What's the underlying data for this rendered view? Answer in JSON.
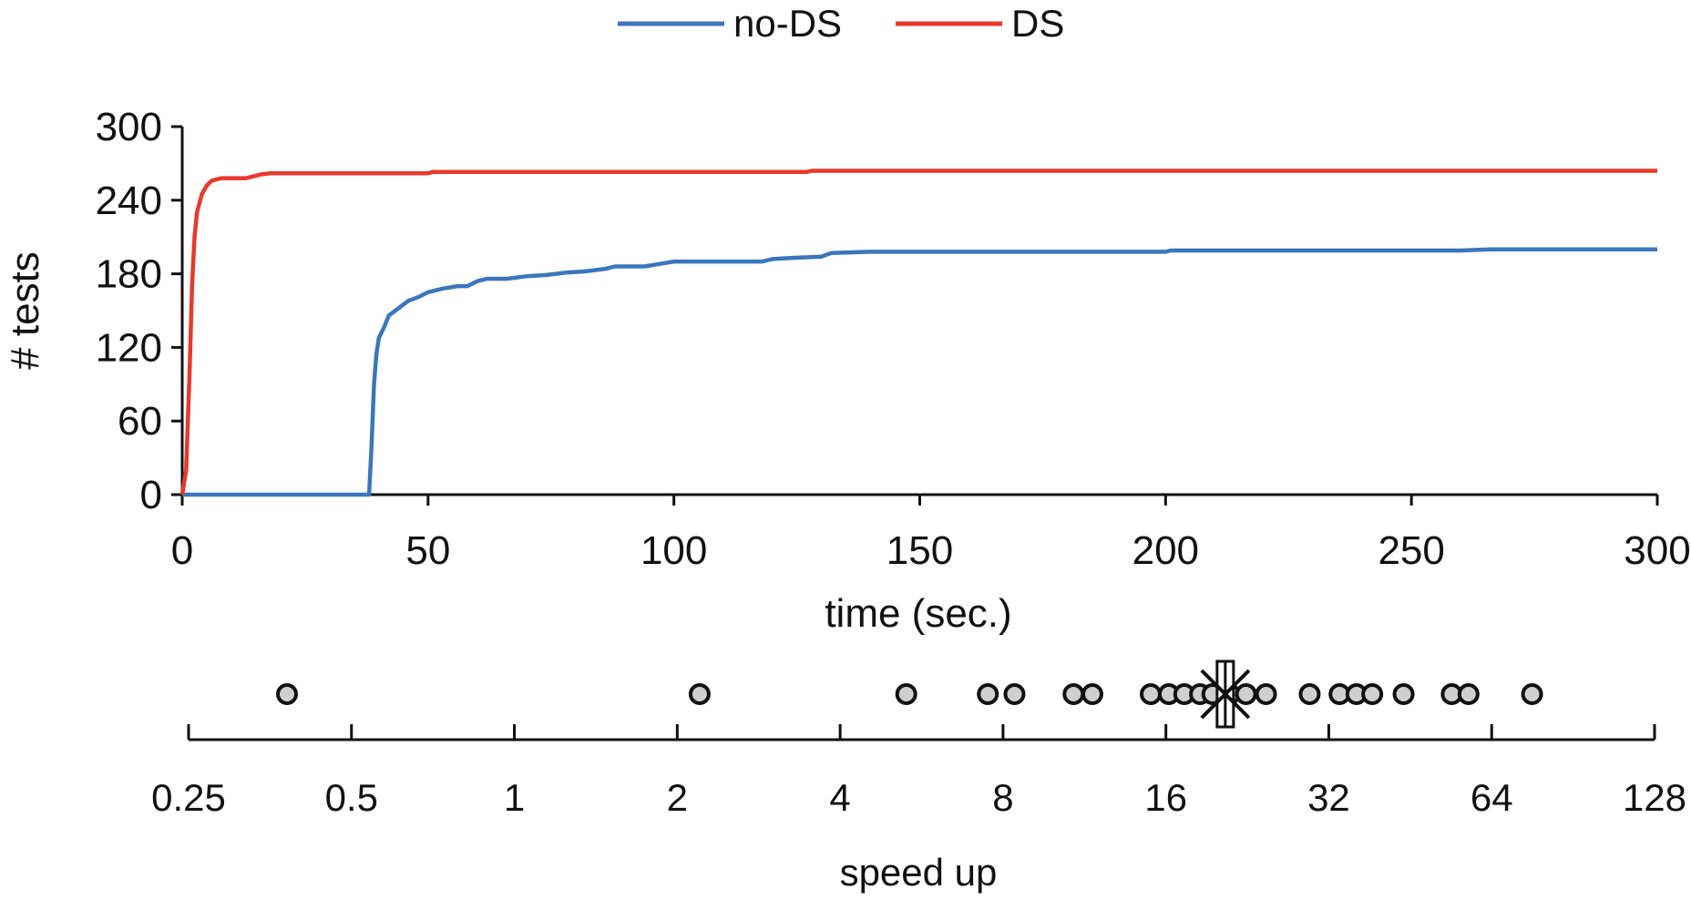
{
  "chart_data": [
    {
      "type": "line",
      "xlabel": "time (sec.)",
      "ylabel": "# tests",
      "xlim": [
        0,
        300
      ],
      "ylim": [
        0,
        300
      ],
      "xticks": [
        "0",
        "50",
        "100",
        "150",
        "200",
        "250",
        "300"
      ],
      "yticks": [
        "0",
        "60",
        "120",
        "180",
        "240",
        "300"
      ],
      "grid": false,
      "legend": "top-center",
      "series": [
        {
          "name": "no-DS",
          "color": "#3b76bd",
          "points": [
            [
              0,
              0
            ],
            [
              38,
              0
            ],
            [
              38.5,
              40
            ],
            [
              39,
              90
            ],
            [
              39.5,
              115
            ],
            [
              40,
              128
            ],
            [
              41,
              136
            ],
            [
              42,
              146
            ],
            [
              44,
              152
            ],
            [
              46,
              158
            ],
            [
              48,
              161
            ],
            [
              50,
              165
            ],
            [
              53,
              168
            ],
            [
              56,
              170
            ],
            [
              58,
              170
            ],
            [
              60,
              174
            ],
            [
              62,
              176
            ],
            [
              66,
              176
            ],
            [
              70,
              178
            ],
            [
              74,
              179
            ],
            [
              78,
              181
            ],
            [
              82,
              182
            ],
            [
              86,
              184
            ],
            [
              88,
              186
            ],
            [
              94,
              186
            ],
            [
              97,
              188
            ],
            [
              100,
              190
            ],
            [
              110,
              190
            ],
            [
              118,
              190
            ],
            [
              120,
              192
            ],
            [
              124,
              193
            ],
            [
              130,
              194
            ],
            [
              132,
              197
            ],
            [
              140,
              198
            ],
            [
              160,
              198
            ],
            [
              200,
              198
            ],
            [
              201,
              199
            ],
            [
              260,
              199
            ],
            [
              266,
              200
            ],
            [
              300,
              200
            ]
          ]
        },
        {
          "name": "DS",
          "color": "#e8392b",
          "points": [
            [
              0,
              0
            ],
            [
              0.8,
              20
            ],
            [
              1.5,
              100
            ],
            [
              2,
              170
            ],
            [
              2.5,
              210
            ],
            [
              3,
              230
            ],
            [
              4,
              245
            ],
            [
              5,
              252
            ],
            [
              6,
              256
            ],
            [
              8,
              258
            ],
            [
              13,
              258
            ],
            [
              16,
              261
            ],
            [
              18,
              262
            ],
            [
              50,
              262
            ],
            [
              51,
              263
            ],
            [
              127,
              263
            ],
            [
              128,
              264
            ],
            [
              300,
              264
            ]
          ]
        }
      ]
    },
    {
      "type": "scatter",
      "xlabel": "speed up",
      "xscale": "log2",
      "xlim": [
        0.25,
        128
      ],
      "xticks": [
        "0.25",
        "0.5",
        "1",
        "2",
        "4",
        "8",
        "16",
        "32",
        "64",
        "128"
      ],
      "point_color": "#cfcfcf",
      "values": [
        0.38,
        2.2,
        5.3,
        7.5,
        8.4,
        10.8,
        11.7,
        15.0,
        16.2,
        17.3,
        18.5,
        19.5,
        21.0,
        22.5,
        24.5,
        29.5,
        33.5,
        36.0,
        38.5,
        44.0,
        54.0,
        58.0,
        76.0
      ],
      "box_marker_value": 20.6
    }
  ]
}
